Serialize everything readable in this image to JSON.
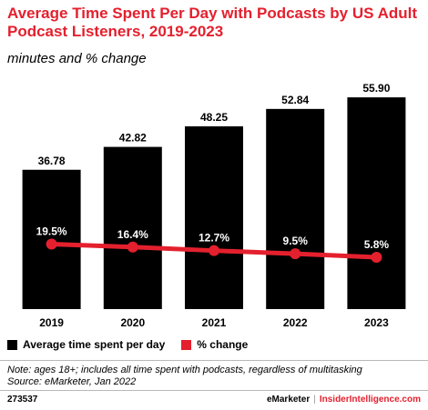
{
  "header": {
    "title": "Average Time Spent Per Day with Podcasts by US Adult Podcast Listeners, 2019-2023",
    "subtitle": "minutes and % change"
  },
  "chart_data": {
    "type": "bar",
    "categories": [
      "2019",
      "2020",
      "2021",
      "2022",
      "2023"
    ],
    "series": [
      {
        "name": "Average time spent per day",
        "type": "bar",
        "values": [
          36.78,
          42.82,
          48.25,
          52.84,
          55.9
        ],
        "labels": [
          "36.78",
          "42.82",
          "48.25",
          "52.84",
          "55.90"
        ],
        "color": "#000000"
      },
      {
        "name": "% change",
        "type": "line",
        "values": [
          19.5,
          16.4,
          12.7,
          9.5,
          5.8
        ],
        "labels": [
          "19.5%",
          "16.4%",
          "12.7%",
          "9.5%",
          "5.8%"
        ],
        "color": "#e4202e"
      }
    ],
    "title": "Average Time Spent Per Day with Podcasts by US Adult Podcast Listeners, 2019-2023",
    "subtitle": "minutes and % change",
    "ylim": [
      0,
      60
    ],
    "grid": false,
    "legend_position": "bottom-left"
  },
  "legend": {
    "bar_label": "Average time spent per day",
    "line_label": "% change"
  },
  "footnote": {
    "line1": "Note: ages 18+; includes all time spent with podcasts, regardless of multitasking",
    "line2": "Source: eMarketer, Jan 2022"
  },
  "footer": {
    "chart_id": "273537",
    "brand": "eMarketer",
    "separator": "|",
    "site": "InsiderIntelligence.com"
  },
  "colors": {
    "accent": "#e4202e",
    "bar": "#000000"
  }
}
